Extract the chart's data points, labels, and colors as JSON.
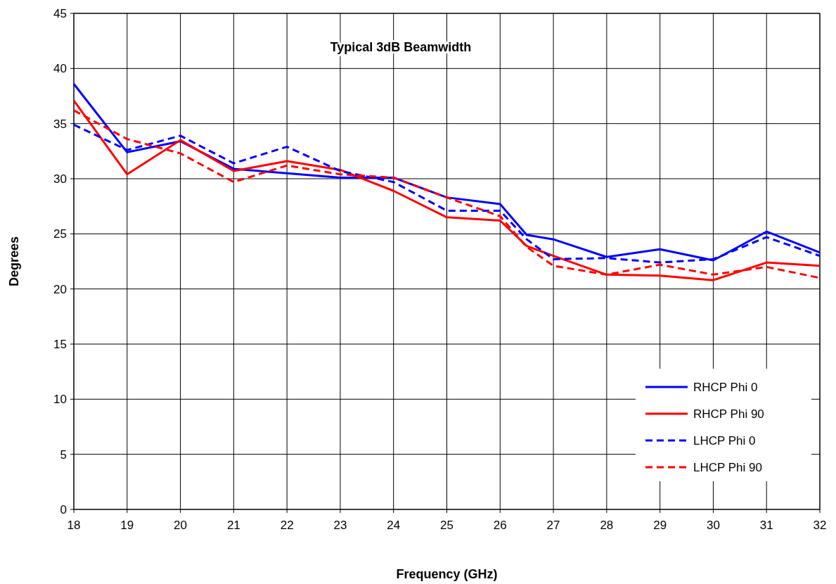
{
  "chart_data": {
    "type": "line",
    "title": "Typical 3dB Beamwidth",
    "xlabel": "Frequency (GHz)",
    "ylabel": "Degrees",
    "x": [
      18,
      19,
      20,
      21,
      22,
      23,
      24,
      25,
      26,
      26.5,
      27,
      28,
      29,
      30,
      31,
      32
    ],
    "series": [
      {
        "name": "RHCP Phi 0",
        "color": "#0000ff",
        "line_style": "solid",
        "values": [
          38.6,
          32.4,
          33.4,
          30.9,
          30.5,
          30.1,
          30.1,
          28.3,
          27.7,
          24.9,
          24.5,
          22.9,
          23.6,
          22.6,
          25.2,
          23.3
        ]
      },
      {
        "name": "RHCP Phi 90",
        "color": "#ff0000",
        "line_style": "solid",
        "values": [
          37.1,
          30.4,
          33.5,
          30.7,
          31.6,
          30.8,
          28.9,
          26.5,
          26.2,
          23.9,
          23.0,
          21.3,
          21.2,
          20.8,
          22.4,
          22.1
        ]
      },
      {
        "name": "LHCP Phi 0",
        "color": "#0000ff",
        "line_style": "dashed",
        "values": [
          34.9,
          32.6,
          33.9,
          31.4,
          32.9,
          30.7,
          29.7,
          27.1,
          27.1,
          24.5,
          22.7,
          22.8,
          22.4,
          22.7,
          24.7,
          23.0
        ]
      },
      {
        "name": "LHCP Phi 90",
        "color": "#ff0000",
        "line_style": "dashed",
        "values": [
          36.2,
          33.6,
          32.3,
          29.7,
          31.2,
          30.4,
          30.1,
          28.3,
          26.6,
          23.8,
          22.1,
          21.3,
          22.2,
          21.3,
          22.0,
          21.0
        ]
      }
    ],
    "xlim": [
      18,
      32
    ],
    "xticks": [
      18,
      19,
      20,
      21,
      22,
      23,
      24,
      25,
      26,
      27,
      28,
      29,
      30,
      31,
      32
    ],
    "ylim": [
      0,
      45
    ],
    "yticks": [
      0,
      5,
      10,
      15,
      20,
      25,
      30,
      35,
      40,
      45
    ],
    "grid": true,
    "legend": "bottom right",
    "marker": "none"
  }
}
